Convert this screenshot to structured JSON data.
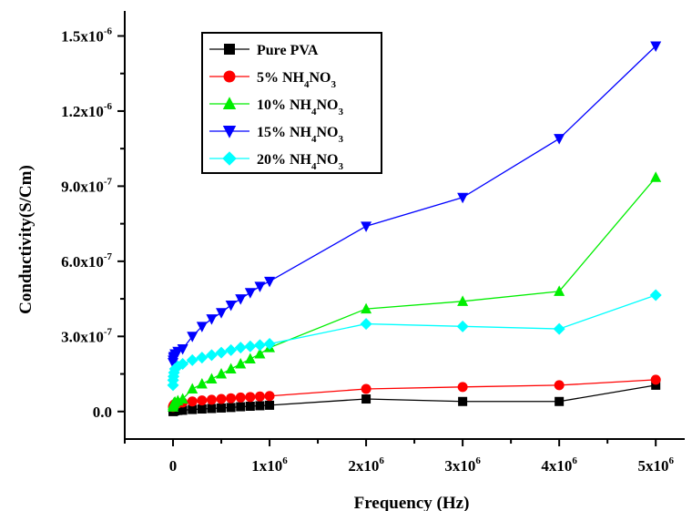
{
  "chart_data": {
    "type": "line",
    "xlabel": "Frequency (Hz)",
    "ylabel": "Conductivity(S/Cm)",
    "xlim": [
      -500000,
      5300000
    ],
    "ylim": [
      -1.1e-07,
      1.6e-06
    ],
    "x_ticks": [
      {
        "value": 0,
        "base": "0",
        "exp": ""
      },
      {
        "value": 1000000,
        "base": "1x10",
        "exp": "6"
      },
      {
        "value": 2000000,
        "base": "2x10",
        "exp": "6"
      },
      {
        "value": 3000000,
        "base": "3x10",
        "exp": "6"
      },
      {
        "value": 4000000,
        "base": "4x10",
        "exp": "6"
      },
      {
        "value": 5000000,
        "base": "5x10",
        "exp": "6"
      }
    ],
    "y_ticks": [
      {
        "value": 0,
        "base": "0.0",
        "exp": ""
      },
      {
        "value": 3e-07,
        "base": "3.0x10",
        "exp": "-7"
      },
      {
        "value": 6e-07,
        "base": "6.0x10",
        "exp": "-7"
      },
      {
        "value": 9e-07,
        "base": "9.0x10",
        "exp": "-7"
      },
      {
        "value": 1.2e-06,
        "base": "1.2x10",
        "exp": "-6"
      },
      {
        "value": 1.5e-06,
        "base": "1.5x10",
        "exp": "-6"
      }
    ],
    "legend_position": "top-left",
    "grid": false,
    "series": [
      {
        "name": "Pure PVA",
        "name_parts": [
          "Pure PVA"
        ],
        "color": "#000000",
        "marker": "square",
        "x": [
          100,
          1000,
          5000,
          10000,
          20000,
          50000,
          100000,
          200000,
          300000,
          400000,
          500000,
          600000,
          700000,
          800000,
          900000,
          1000000,
          2000000,
          3000000,
          4000000,
          5000000
        ],
        "y": [
          0,
          0,
          1e-09,
          2e-09,
          3e-09,
          4e-09,
          5e-09,
          8e-09,
          1e-08,
          1.2e-08,
          1.4e-08,
          1.6e-08,
          1.9e-08,
          2.1e-08,
          2.3e-08,
          2.5e-08,
          5e-08,
          4e-08,
          4e-08,
          1.05e-07
        ]
      },
      {
        "name": "5% NH4NO3",
        "name_parts": [
          "5% NH",
          "4",
          "NO",
          "3"
        ],
        "color": "#ff0000",
        "marker": "circle",
        "x": [
          100,
          1000,
          5000,
          10000,
          20000,
          50000,
          100000,
          200000,
          300000,
          400000,
          500000,
          600000,
          700000,
          800000,
          900000,
          1000000,
          2000000,
          3000000,
          4000000,
          5000000
        ],
        "y": [
          1.8e-08,
          2e-08,
          2.4e-08,
          2.7e-08,
          3e-08,
          3.3e-08,
          3.6e-08,
          4e-08,
          4.4e-08,
          4.7e-08,
          5e-08,
          5.3e-08,
          5.6e-08,
          5.8e-08,
          6e-08,
          6.2e-08,
          9e-08,
          9.8e-08,
          1.05e-07,
          1.27e-07
        ]
      },
      {
        "name": "10% NH4NO3",
        "name_parts": [
          "10% NH",
          "4",
          "NO",
          "3"
        ],
        "color": "#00ee00",
        "marker": "triangle-up",
        "x": [
          100,
          1000,
          5000,
          10000,
          20000,
          50000,
          100000,
          200000,
          300000,
          400000,
          500000,
          600000,
          700000,
          800000,
          900000,
          1000000,
          2000000,
          3000000,
          4000000,
          5000000
        ],
        "y": [
          1.8e-08,
          2.4e-08,
          2.9e-08,
          3.4e-08,
          3.8e-08,
          4.3e-08,
          5e-08,
          9e-08,
          1.1e-07,
          1.3e-07,
          1.5e-07,
          1.7e-07,
          1.9e-07,
          2.1e-07,
          2.3e-07,
          2.55e-07,
          4.1e-07,
          4.4e-07,
          4.8e-07,
          9.35e-07
        ]
      },
      {
        "name": "15% NH4NO3",
        "name_parts": [
          "15% NH",
          "4",
          "NO",
          "3"
        ],
        "color": "#0000ff",
        "marker": "triangle-down",
        "x": [
          100,
          1000,
          5000,
          10000,
          20000,
          50000,
          100000,
          200000,
          300000,
          400000,
          500000,
          600000,
          700000,
          800000,
          900000,
          1000000,
          2000000,
          3000000,
          4000000,
          5000000
        ],
        "y": [
          1.95e-07,
          2.05e-07,
          2.15e-07,
          2.2e-07,
          2.3e-07,
          2.4e-07,
          2.5e-07,
          3e-07,
          3.4e-07,
          3.7e-07,
          3.95e-07,
          4.25e-07,
          4.5e-07,
          4.75e-07,
          5e-07,
          5.2e-07,
          7.4e-07,
          8.55e-07,
          1.09e-06,
          1.46e-06
        ]
      },
      {
        "name": "20% NH4NO3",
        "name_parts": [
          "20% NH",
          "4",
          "NO",
          "3"
        ],
        "color": "#00ffff",
        "marker": "diamond",
        "x": [
          100,
          1000,
          5000,
          10000,
          20000,
          50000,
          100000,
          200000,
          300000,
          400000,
          500000,
          600000,
          700000,
          800000,
          900000,
          1000000,
          2000000,
          3000000,
          4000000,
          5000000
        ],
        "y": [
          1.05e-07,
          1.25e-07,
          1.4e-07,
          1.55e-07,
          1.7e-07,
          1.8e-07,
          1.9e-07,
          2.05e-07,
          2.15e-07,
          2.25e-07,
          2.35e-07,
          2.45e-07,
          2.55e-07,
          2.6e-07,
          2.65e-07,
          2.7e-07,
          3.5e-07,
          3.4e-07,
          3.3e-07,
          4.65e-07
        ]
      }
    ]
  }
}
